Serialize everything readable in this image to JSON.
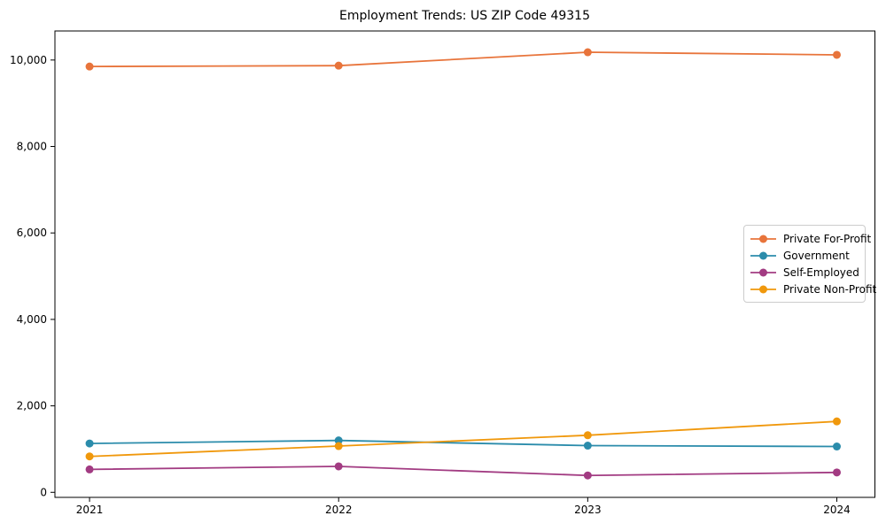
{
  "chart_data": {
    "type": "line",
    "title": "Employment Trends: US ZIP Code 49315",
    "xlabel": "",
    "ylabel": "",
    "x": [
      2021,
      2022,
      2023,
      2024
    ],
    "xticklabels": [
      "2021",
      "2022",
      "2023",
      "2024"
    ],
    "yticks": [
      0,
      2000,
      4000,
      6000,
      8000,
      10000
    ],
    "yticklabels": [
      "0",
      "2,000",
      "4,000",
      "6,000",
      "8,000",
      "10,000"
    ],
    "xlim": [
      2020.861,
      2024.153
    ],
    "ylim": [
      -117,
      10672
    ],
    "grid": false,
    "legend_position": "center-right",
    "frame_color": "#000000",
    "series": [
      {
        "name": "Private For-Profit",
        "color": "#e8743b",
        "values": [
          9850,
          9870,
          10180,
          10120
        ]
      },
      {
        "name": "Government",
        "color": "#2b8cab",
        "values": [
          1130,
          1200,
          1080,
          1060
        ]
      },
      {
        "name": "Self-Employed",
        "color": "#a23b82",
        "values": [
          530,
          600,
          390,
          460
        ]
      },
      {
        "name": "Private Non-Profit",
        "color": "#f0980c",
        "values": [
          830,
          1070,
          1320,
          1640
        ]
      }
    ]
  }
}
